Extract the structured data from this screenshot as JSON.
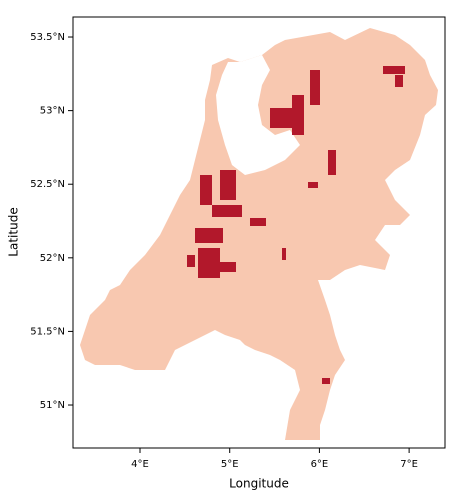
{
  "chart_data": {
    "type": "raster",
    "xlabel": "Longitude",
    "ylabel": "Latitude",
    "xlim": [
      3.253,
      7.4
    ],
    "ylim": [
      50.708,
      53.636
    ],
    "xticks": [
      {
        "value": 4,
        "label": "4°E"
      },
      {
        "value": 5,
        "label": "5°E"
      },
      {
        "value": 6,
        "label": "6°E"
      },
      {
        "value": 7,
        "label": "7°E"
      }
    ],
    "yticks": [
      {
        "value": 51,
        "label": "51°N"
      },
      {
        "value": 51.5,
        "label": "51.5°N"
      },
      {
        "value": 52,
        "label": "52°N"
      },
      {
        "value": 52.5,
        "label": "52.5°N"
      },
      {
        "value": 53,
        "label": "53°N"
      },
      {
        "value": 53.5,
        "label": "53.5°N"
      }
    ]
  }
}
